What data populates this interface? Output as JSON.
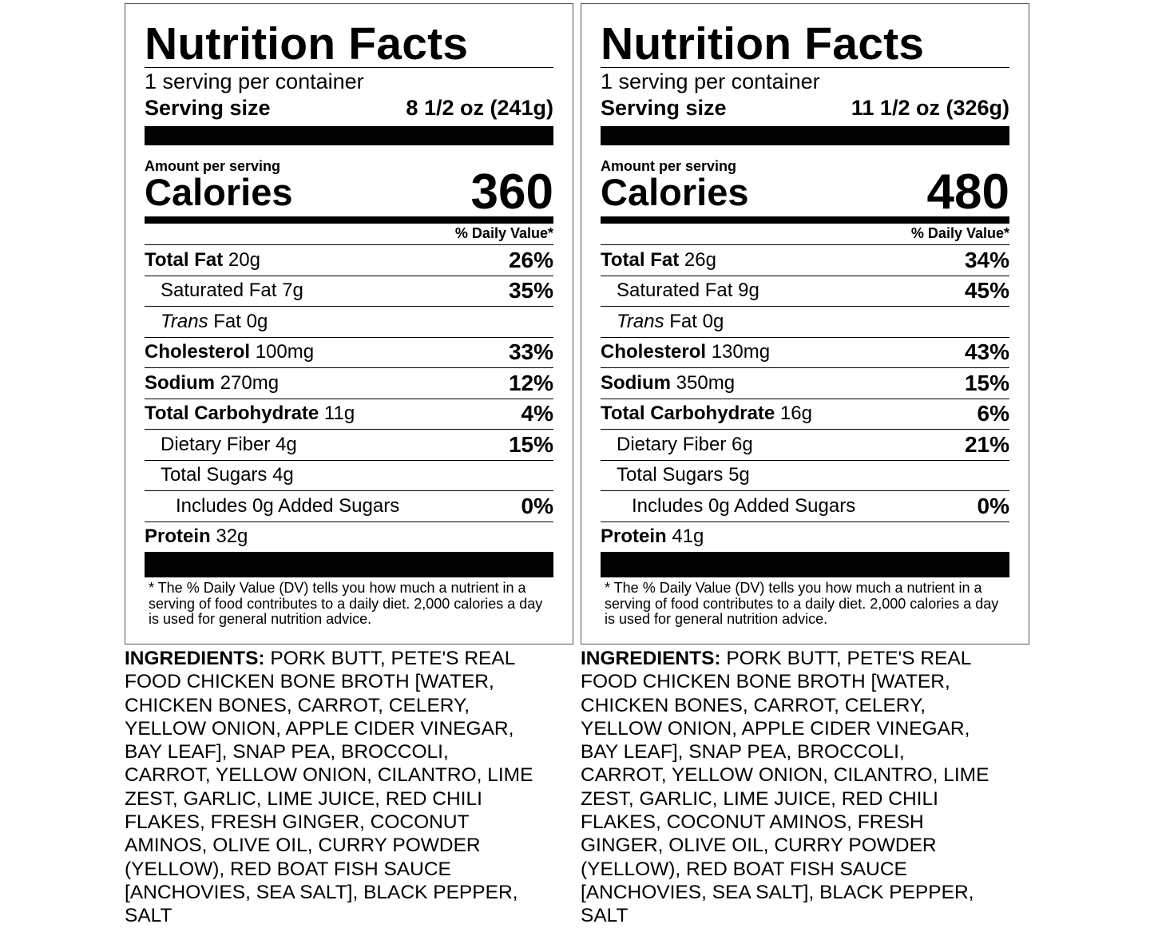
{
  "labels": [
    {
      "title": "Nutrition Facts",
      "servings_per_container": "1 serving per container",
      "serving_size_label": "Serving size",
      "serving_size_value": "8 1/2 oz (241g)",
      "amount_per_serving": "Amount per serving",
      "calories_label": "Calories",
      "calories_value": "360",
      "daily_value_header": "% Daily Value*",
      "nutrients": [
        {
          "name": "Total Fat",
          "amount": "20g",
          "dv": "26%"
        },
        {
          "name": "Saturated Fat",
          "amount": "7g",
          "dv": "35%"
        },
        {
          "name": "Trans",
          "amount": "Fat 0g",
          "dv": ""
        },
        {
          "name": "Cholesterol",
          "amount": "100mg",
          "dv": "33%"
        },
        {
          "name": "Sodium",
          "amount": "270mg",
          "dv": "12%"
        },
        {
          "name": "Total Carbohydrate",
          "amount": "11g",
          "dv": "4%"
        },
        {
          "name": "Dietary Fiber",
          "amount": "4g",
          "dv": "15%"
        },
        {
          "name": "Total Sugars",
          "amount": "4g",
          "dv": ""
        },
        {
          "name": "Includes 0g Added Sugars",
          "amount": "",
          "dv": "0%"
        },
        {
          "name": "Protein",
          "amount": "32g",
          "dv": ""
        }
      ],
      "footnote": "* The % Daily Value (DV) tells you how much a nutrient in a serving of food contributes to a daily diet. 2,000 calories a day is used for general nutrition advice.",
      "ingredients_label": "INGREDIENTS:",
      "ingredients_text": "PORK BUTT, PETE'S REAL FOOD CHICKEN BONE BROTH [WATER, CHICKEN BONES, CARROT, CELERY, YELLOW ONION, APPLE CIDER VINEGAR, BAY LEAF], SNAP PEA, BROCCOLI, CARROT, YELLOW ONION, CILANTRO, LIME ZEST, GARLIC, LIME JUICE, RED CHILI FLAKES, FRESH GINGER, COCONUT AMINOS, OLIVE OIL, CURRY POWDER (YELLOW), RED BOAT FISH SAUCE [ANCHOVIES, SEA SALT], BLACK PEPPER, SALT"
    },
    {
      "title": "Nutrition Facts",
      "servings_per_container": "1 serving per container",
      "serving_size_label": "Serving size",
      "serving_size_value": "11 1/2 oz (326g)",
      "amount_per_serving": "Amount per serving",
      "calories_label": "Calories",
      "calories_value": "480",
      "daily_value_header": "% Daily Value*",
      "nutrients": [
        {
          "name": "Total Fat",
          "amount": "26g",
          "dv": "34%"
        },
        {
          "name": "Saturated Fat",
          "amount": "9g",
          "dv": "45%"
        },
        {
          "name": "Trans",
          "amount": "Fat 0g",
          "dv": ""
        },
        {
          "name": "Cholesterol",
          "amount": "130mg",
          "dv": "43%"
        },
        {
          "name": "Sodium",
          "amount": "350mg",
          "dv": "15%"
        },
        {
          "name": "Total Carbohydrate",
          "amount": "16g",
          "dv": "6%"
        },
        {
          "name": "Dietary Fiber",
          "amount": "6g",
          "dv": "21%"
        },
        {
          "name": "Total Sugars",
          "amount": "5g",
          "dv": ""
        },
        {
          "name": "Includes 0g Added Sugars",
          "amount": "",
          "dv": "0%"
        },
        {
          "name": "Protein",
          "amount": "41g",
          "dv": ""
        }
      ],
      "footnote": "* The % Daily Value (DV) tells you how much a nutrient in a serving of food contributes to a daily diet. 2,000 calories a day is used for general nutrition advice.",
      "ingredients_label": "INGREDIENTS:",
      "ingredients_text": "PORK BUTT, PETE'S REAL FOOD CHICKEN BONE BROTH [WATER, CHICKEN BONES, CARROT, CELERY, YELLOW ONION, APPLE CIDER VINEGAR, BAY LEAF], SNAP PEA, BROCCOLI, CARROT, YELLOW ONION, CILANTRO, LIME ZEST, GARLIC, LIME JUICE, RED CHILI FLAKES, COCONUT AMINOS, FRESH GINGER, OLIVE OIL, CURRY POWDER (YELLOW), RED BOAT FISH SAUCE [ANCHOVIES, SEA SALT], BLACK PEPPER, SALT"
    }
  ]
}
